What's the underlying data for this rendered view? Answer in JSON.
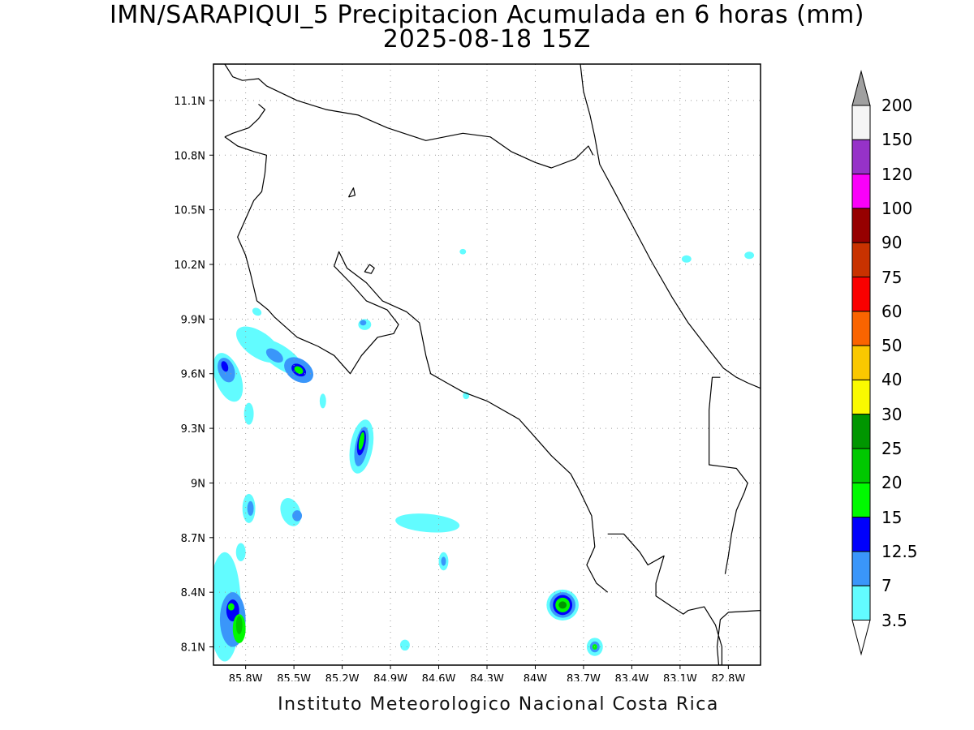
{
  "title": "IMN/SARAPIQUI_5 Precipitacion Acumulada en 6 horas (mm)",
  "subtitle": "2025-08-18 15Z",
  "footer": "Instituto Meteorologico Nacional Costa Rica",
  "map": {
    "lon_range": [
      -86.0,
      -82.6
    ],
    "lat_range": [
      8.0,
      11.3
    ],
    "lat_ticks": [
      {
        "value": 11.1,
        "label": "11.1N"
      },
      {
        "value": 10.8,
        "label": "10.8N"
      },
      {
        "value": 10.5,
        "label": "10.5N"
      },
      {
        "value": 10.2,
        "label": "10.2N"
      },
      {
        "value": 9.9,
        "label": "9.9N"
      },
      {
        "value": 9.6,
        "label": "9.6N"
      },
      {
        "value": 9.3,
        "label": "9.3N"
      },
      {
        "value": 9.0,
        "label": "9N"
      },
      {
        "value": 8.7,
        "label": "8.7N"
      },
      {
        "value": 8.4,
        "label": "8.4N"
      },
      {
        "value": 8.1,
        "label": "8.1N"
      }
    ],
    "lon_ticks": [
      {
        "value": -85.8,
        "label": "85.8W"
      },
      {
        "value": -85.5,
        "label": "85.5W"
      },
      {
        "value": -85.2,
        "label": "85.2W"
      },
      {
        "value": -84.9,
        "label": "84.9W"
      },
      {
        "value": -84.6,
        "label": "84.6W"
      },
      {
        "value": -84.3,
        "label": "84.3W"
      },
      {
        "value": -84.0,
        "label": "84W"
      },
      {
        "value": -83.7,
        "label": "83.7W"
      },
      {
        "value": -83.4,
        "label": "83.4W"
      },
      {
        "value": -83.1,
        "label": "83.1W"
      },
      {
        "value": -82.8,
        "label": "82.8W"
      }
    ],
    "grid": true
  },
  "colorbar": {
    "unit": "mm",
    "labels": [
      "3.5",
      "7",
      "12.5",
      "15",
      "20",
      "25",
      "30",
      "40",
      "50",
      "60",
      "75",
      "90",
      "100",
      "120",
      "150",
      "200"
    ],
    "colors": [
      "#62fcff",
      "#3a96fa",
      "#0000fc",
      "#00fa00",
      "#00c800",
      "#009600",
      "#fafa00",
      "#fac800",
      "#fa6400",
      "#fa0000",
      "#c83200",
      "#960000",
      "#fa00fa",
      "#9632c8",
      "#f5f5f5",
      "#a0a0a0"
    ],
    "below_color": "#ffffff",
    "above_color": "#a0a0a0"
  },
  "precip_cells": [
    {
      "lon": -85.72,
      "lat": 9.76,
      "rx": 0.16,
      "ry": 0.07,
      "rot": 35,
      "level": 1
    },
    {
      "lon": -85.58,
      "lat": 9.69,
      "rx": 0.17,
      "ry": 0.06,
      "rot": 35,
      "level": 1
    },
    {
      "lon": -85.62,
      "lat": 9.7,
      "rx": 0.06,
      "ry": 0.03,
      "rot": 35,
      "level": 2
    },
    {
      "lon": -85.47,
      "lat": 9.62,
      "rx": 0.1,
      "ry": 0.06,
      "rot": 35,
      "level": 2
    },
    {
      "lon": -85.47,
      "lat": 9.62,
      "rx": 0.05,
      "ry": 0.03,
      "rot": 35,
      "level": 3
    },
    {
      "lon": -85.47,
      "lat": 9.62,
      "rx": 0.03,
      "ry": 0.018,
      "rot": 35,
      "level": 4
    },
    {
      "lon": -85.91,
      "lat": 9.58,
      "rx": 0.08,
      "ry": 0.14,
      "rot": -20,
      "level": 1
    },
    {
      "lon": -85.92,
      "lat": 9.62,
      "rx": 0.05,
      "ry": 0.07,
      "rot": -20,
      "level": 2
    },
    {
      "lon": -85.93,
      "lat": 9.64,
      "rx": 0.02,
      "ry": 0.03,
      "rot": -20,
      "level": 3
    },
    {
      "lon": -85.78,
      "lat": 9.38,
      "rx": 0.03,
      "ry": 0.06,
      "rot": 0,
      "level": 1
    },
    {
      "lon": -85.32,
      "lat": 9.45,
      "rx": 0.02,
      "ry": 0.04,
      "rot": 0,
      "level": 1
    },
    {
      "lon": -85.06,
      "lat": 9.87,
      "rx": 0.04,
      "ry": 0.03,
      "rot": 0,
      "level": 1
    },
    {
      "lon": -85.07,
      "lat": 9.88,
      "rx": 0.02,
      "ry": 0.015,
      "rot": 0,
      "level": 2
    },
    {
      "lon": -85.08,
      "lat": 9.2,
      "rx": 0.07,
      "ry": 0.15,
      "rot": 10,
      "level": 1
    },
    {
      "lon": -85.08,
      "lat": 9.2,
      "rx": 0.04,
      "ry": 0.11,
      "rot": 10,
      "level": 2
    },
    {
      "lon": -85.08,
      "lat": 9.22,
      "rx": 0.025,
      "ry": 0.07,
      "rot": 10,
      "level": 3
    },
    {
      "lon": -85.08,
      "lat": 9.23,
      "rx": 0.015,
      "ry": 0.05,
      "rot": 10,
      "level": 4
    },
    {
      "lon": -85.78,
      "lat": 8.86,
      "rx": 0.04,
      "ry": 0.08,
      "rot": 0,
      "level": 1
    },
    {
      "lon": -85.77,
      "lat": 8.86,
      "rx": 0.02,
      "ry": 0.04,
      "rot": 0,
      "level": 2
    },
    {
      "lon": -85.52,
      "lat": 8.84,
      "rx": 0.06,
      "ry": 0.08,
      "rot": -20,
      "level": 1
    },
    {
      "lon": -85.48,
      "lat": 8.82,
      "rx": 0.03,
      "ry": 0.03,
      "rot": 0,
      "level": 2
    },
    {
      "lon": -84.67,
      "lat": 8.78,
      "rx": 0.2,
      "ry": 0.05,
      "rot": 5,
      "level": 1
    },
    {
      "lon": -84.57,
      "lat": 8.57,
      "rx": 0.03,
      "ry": 0.05,
      "rot": 0,
      "level": 1
    },
    {
      "lon": -84.57,
      "lat": 8.57,
      "rx": 0.015,
      "ry": 0.025,
      "rot": 0,
      "level": 2
    },
    {
      "lon": -84.45,
      "lat": 10.27,
      "rx": 0.02,
      "ry": 0.015,
      "rot": 0,
      "level": 1
    },
    {
      "lon": -83.06,
      "lat": 10.23,
      "rx": 0.03,
      "ry": 0.02,
      "rot": 0,
      "level": 1
    },
    {
      "lon": -82.67,
      "lat": 10.25,
      "rx": 0.03,
      "ry": 0.02,
      "rot": 0,
      "level": 1
    },
    {
      "lon": -85.73,
      "lat": 9.94,
      "rx": 0.03,
      "ry": 0.02,
      "rot": 30,
      "level": 1
    },
    {
      "lon": -84.43,
      "lat": 9.48,
      "rx": 0.02,
      "ry": 0.02,
      "rot": 0,
      "level": 1
    },
    {
      "lon": -83.83,
      "lat": 8.33,
      "rx": 0.1,
      "ry": 0.085,
      "rot": 0,
      "level": 1
    },
    {
      "lon": -83.83,
      "lat": 8.33,
      "rx": 0.08,
      "ry": 0.07,
      "rot": 0,
      "level": 2
    },
    {
      "lon": -83.83,
      "lat": 8.33,
      "rx": 0.06,
      "ry": 0.055,
      "rot": 0,
      "level": 3
    },
    {
      "lon": -83.83,
      "lat": 8.33,
      "rx": 0.045,
      "ry": 0.04,
      "rot": 0,
      "level": 4
    },
    {
      "lon": -83.83,
      "lat": 8.33,
      "rx": 0.025,
      "ry": 0.02,
      "rot": 0,
      "level": 6
    },
    {
      "lon": -83.63,
      "lat": 8.1,
      "rx": 0.05,
      "ry": 0.05,
      "rot": 0,
      "level": 1
    },
    {
      "lon": -83.63,
      "lat": 8.1,
      "rx": 0.03,
      "ry": 0.03,
      "rot": 0,
      "level": 2
    },
    {
      "lon": -83.63,
      "lat": 8.1,
      "rx": 0.015,
      "ry": 0.015,
      "rot": 0,
      "level": 4
    },
    {
      "lon": -84.81,
      "lat": 8.11,
      "rx": 0.03,
      "ry": 0.03,
      "rot": 0,
      "level": 1
    },
    {
      "lon": -85.83,
      "lat": 8.62,
      "rx": 0.03,
      "ry": 0.05,
      "rot": 0,
      "level": 1
    },
    {
      "lon": -85.93,
      "lat": 8.32,
      "rx": 0.1,
      "ry": 0.3,
      "rot": 0,
      "level": 1
    },
    {
      "lon": -85.88,
      "lat": 8.25,
      "rx": 0.08,
      "ry": 0.15,
      "rot": 0,
      "level": 2
    },
    {
      "lon": -85.88,
      "lat": 8.3,
      "rx": 0.04,
      "ry": 0.06,
      "rot": 0,
      "level": 3
    },
    {
      "lon": -85.84,
      "lat": 8.2,
      "rx": 0.04,
      "ry": 0.08,
      "rot": 0,
      "level": 4
    },
    {
      "lon": -85.84,
      "lat": 8.22,
      "rx": 0.02,
      "ry": 0.05,
      "rot": 0,
      "level": 5
    },
    {
      "lon": -85.89,
      "lat": 8.32,
      "rx": 0.02,
      "ry": 0.02,
      "rot": 0,
      "level": 4
    }
  ],
  "coastlines": [
    [
      [
        -85.93,
        11.3
      ],
      [
        -85.88,
        11.23
      ],
      [
        -85.82,
        11.21
      ],
      [
        -85.72,
        11.22
      ],
      [
        -85.67,
        11.18
      ],
      [
        -85.48,
        11.1
      ],
      [
        -85.3,
        11.05
      ],
      [
        -85.1,
        11.02
      ],
      [
        -84.92,
        10.95
      ],
      [
        -84.68,
        10.88
      ],
      [
        -84.45,
        10.92
      ],
      [
        -84.28,
        10.9
      ],
      [
        -84.15,
        10.82
      ],
      [
        -84.0,
        10.76
      ],
      [
        -83.9,
        10.73
      ],
      [
        -83.75,
        10.78
      ],
      [
        -83.67,
        10.85
      ],
      [
        -83.64,
        10.8
      ]
    ],
    [
      [
        -83.72,
        11.3
      ],
      [
        -83.7,
        11.15
      ],
      [
        -83.66,
        11.02
      ],
      [
        -83.63,
        10.9
      ],
      [
        -83.6,
        10.75
      ],
      [
        -83.52,
        10.62
      ],
      [
        -83.4,
        10.42
      ],
      [
        -83.28,
        10.22
      ],
      [
        -83.15,
        10.02
      ],
      [
        -83.05,
        9.88
      ],
      [
        -82.92,
        9.73
      ],
      [
        -82.83,
        9.63
      ],
      [
        -82.75,
        9.58
      ],
      [
        -82.68,
        9.55
      ],
      [
        -82.6,
        9.52
      ]
    ],
    [
      [
        -85.93,
        10.9
      ],
      [
        -85.88,
        10.92
      ],
      [
        -85.78,
        10.95
      ],
      [
        -85.72,
        11.0
      ],
      [
        -85.68,
        11.05
      ],
      [
        -85.72,
        11.08
      ]
    ],
    [
      [
        -85.93,
        10.9
      ],
      [
        -85.85,
        10.85
      ],
      [
        -85.75,
        10.82
      ],
      [
        -85.67,
        10.8
      ],
      [
        -85.68,
        10.7
      ],
      [
        -85.7,
        10.6
      ],
      [
        -85.75,
        10.55
      ],
      [
        -85.8,
        10.45
      ],
      [
        -85.85,
        10.35
      ],
      [
        -85.8,
        10.25
      ],
      [
        -85.77,
        10.15
      ],
      [
        -85.73,
        10.0
      ],
      [
        -85.66,
        9.95
      ],
      [
        -85.62,
        9.91
      ],
      [
        -85.48,
        9.8
      ],
      [
        -85.35,
        9.75
      ],
      [
        -85.25,
        9.7
      ],
      [
        -85.15,
        9.6
      ],
      [
        -85.08,
        9.7
      ],
      [
        -84.98,
        9.8
      ],
      [
        -84.88,
        9.82
      ],
      [
        -84.85,
        9.87
      ],
      [
        -84.92,
        9.95
      ],
      [
        -85.05,
        10.0
      ],
      [
        -85.15,
        10.1
      ],
      [
        -85.25,
        10.19
      ],
      [
        -85.22,
        10.27
      ],
      [
        -85.17,
        10.18
      ],
      [
        -85.05,
        10.1
      ],
      [
        -84.95,
        10.0
      ],
      [
        -84.8,
        9.94
      ],
      [
        -84.72,
        9.88
      ],
      [
        -84.68,
        9.7
      ],
      [
        -84.65,
        9.6
      ],
      [
        -84.55,
        9.55
      ],
      [
        -84.45,
        9.5
      ],
      [
        -84.3,
        9.45
      ],
      [
        -84.1,
        9.35
      ],
      [
        -84.0,
        9.25
      ],
      [
        -83.9,
        9.15
      ],
      [
        -83.78,
        9.05
      ],
      [
        -83.72,
        8.95
      ],
      [
        -83.65,
        8.82
      ],
      [
        -83.63,
        8.65
      ],
      [
        -83.68,
        8.55
      ],
      [
        -83.62,
        8.45
      ],
      [
        -83.55,
        8.4
      ]
    ],
    [
      [
        -83.55,
        8.72
      ],
      [
        -83.45,
        8.72
      ],
      [
        -83.35,
        8.62
      ],
      [
        -83.3,
        8.55
      ],
      [
        -83.2,
        8.6
      ],
      [
        -83.25,
        8.45
      ],
      [
        -83.25,
        8.38
      ],
      [
        -83.15,
        8.32
      ],
      [
        -83.08,
        8.28
      ],
      [
        -83.05,
        8.3
      ],
      [
        -82.95,
        8.32
      ],
      [
        -82.88,
        8.22
      ],
      [
        -82.84,
        8.1
      ],
      [
        -82.84,
        8.0
      ],
      [
        -82.86,
        8.0
      ],
      [
        -82.87,
        8.1
      ],
      [
        -82.85,
        8.25
      ],
      [
        -82.8,
        8.29
      ],
      [
        -82.6,
        8.3
      ]
    ],
    [
      [
        -82.85,
        9.58
      ],
      [
        -82.9,
        9.58
      ],
      [
        -82.92,
        9.4
      ],
      [
        -82.92,
        9.1
      ],
      [
        -82.75,
        9.08
      ],
      [
        -82.68,
        9.0
      ],
      [
        -82.7,
        8.95
      ],
      [
        -82.75,
        8.85
      ],
      [
        -82.78,
        8.72
      ],
      [
        -82.8,
        8.6
      ],
      [
        -82.82,
        8.5
      ]
    ],
    [
      [
        -85.16,
        10.57
      ],
      [
        -85.12,
        10.58
      ],
      [
        -85.13,
        10.62
      ],
      [
        -85.16,
        10.57
      ]
    ],
    [
      [
        -85.03,
        10.2
      ],
      [
        -85.0,
        10.18
      ],
      [
        -85.02,
        10.15
      ],
      [
        -85.06,
        10.16
      ],
      [
        -85.03,
        10.2
      ]
    ]
  ]
}
